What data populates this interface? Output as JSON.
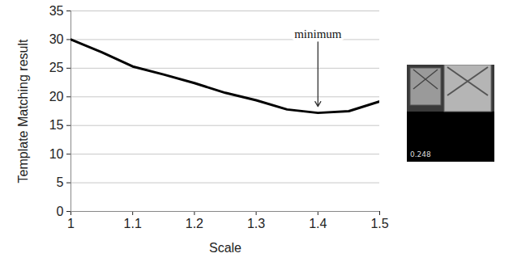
{
  "chart_data": {
    "type": "line",
    "x_label": "Scale",
    "y_label": "Template Matching result",
    "x": [
      1,
      1.05,
      1.1,
      1.15,
      1.2,
      1.25,
      1.3,
      1.35,
      1.4,
      1.45,
      1.5
    ],
    "values": [
      30,
      27.8,
      25.3,
      23.9,
      22.4,
      20.7,
      19.4,
      17.8,
      17.2,
      17.5,
      19.2
    ],
    "color": "#000000",
    "xlim": [
      1,
      1.5
    ],
    "xticks": [
      1,
      1.1,
      1.2,
      1.3,
      1.4,
      1.5
    ],
    "ylim": [
      0,
      35
    ],
    "yticks": [
      0,
      5,
      10,
      15,
      20,
      25,
      30,
      35
    ],
    "grid": true,
    "annotations": [
      {
        "text": "minimum",
        "x": 1.4,
        "y": 31
      }
    ]
  },
  "inset_image": {
    "caption": "0.248"
  }
}
